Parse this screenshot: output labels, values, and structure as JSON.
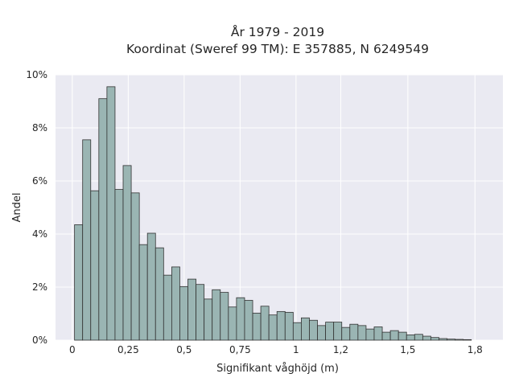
{
  "chart_data": {
    "type": "bar",
    "title_lines": [
      "År 1979 - 2019",
      "Koordinat (Sweref 99 TM): E 357885, N 6249549"
    ],
    "xlabel": "Signifikant våghöjd (m)",
    "ylabel": "Andel",
    "xlim": [
      -0.075,
      1.925
    ],
    "ylim": [
      0,
      10
    ],
    "grid": true,
    "bin_width": 0.0362,
    "bin_start": 0.01,
    "x_ticks": [
      {
        "value": 0,
        "label": "0"
      },
      {
        "value": 0.25,
        "label": "0,25"
      },
      {
        "value": 0.5,
        "label": "0,5"
      },
      {
        "value": 0.75,
        "label": "0,75"
      },
      {
        "value": 1,
        "label": "1"
      },
      {
        "value": 1.2,
        "label": "1,2"
      },
      {
        "value": 1.5,
        "label": "1,5"
      },
      {
        "value": 1.8,
        "label": "1,8"
      }
    ],
    "y_ticks": [
      {
        "value": 0,
        "label": "0%"
      },
      {
        "value": 2,
        "label": "2%"
      },
      {
        "value": 4,
        "label": "4%"
      },
      {
        "value": 6,
        "label": "6%"
      },
      {
        "value": 8,
        "label": "8%"
      },
      {
        "value": 10,
        "label": "10%"
      }
    ],
    "values": [
      4.35,
      7.55,
      5.63,
      9.1,
      9.55,
      5.68,
      6.58,
      5.55,
      3.6,
      4.03,
      3.48,
      2.45,
      2.76,
      2.02,
      2.3,
      2.1,
      1.55,
      1.9,
      1.8,
      1.25,
      1.6,
      1.5,
      1.02,
      1.28,
      0.95,
      1.08,
      1.05,
      0.66,
      0.84,
      0.75,
      0.55,
      0.68,
      0.68,
      0.48,
      0.6,
      0.55,
      0.42,
      0.5,
      0.3,
      0.36,
      0.3,
      0.2,
      0.22,
      0.15,
      0.1,
      0.06,
      0.04,
      0.03,
      0.02
    ]
  }
}
